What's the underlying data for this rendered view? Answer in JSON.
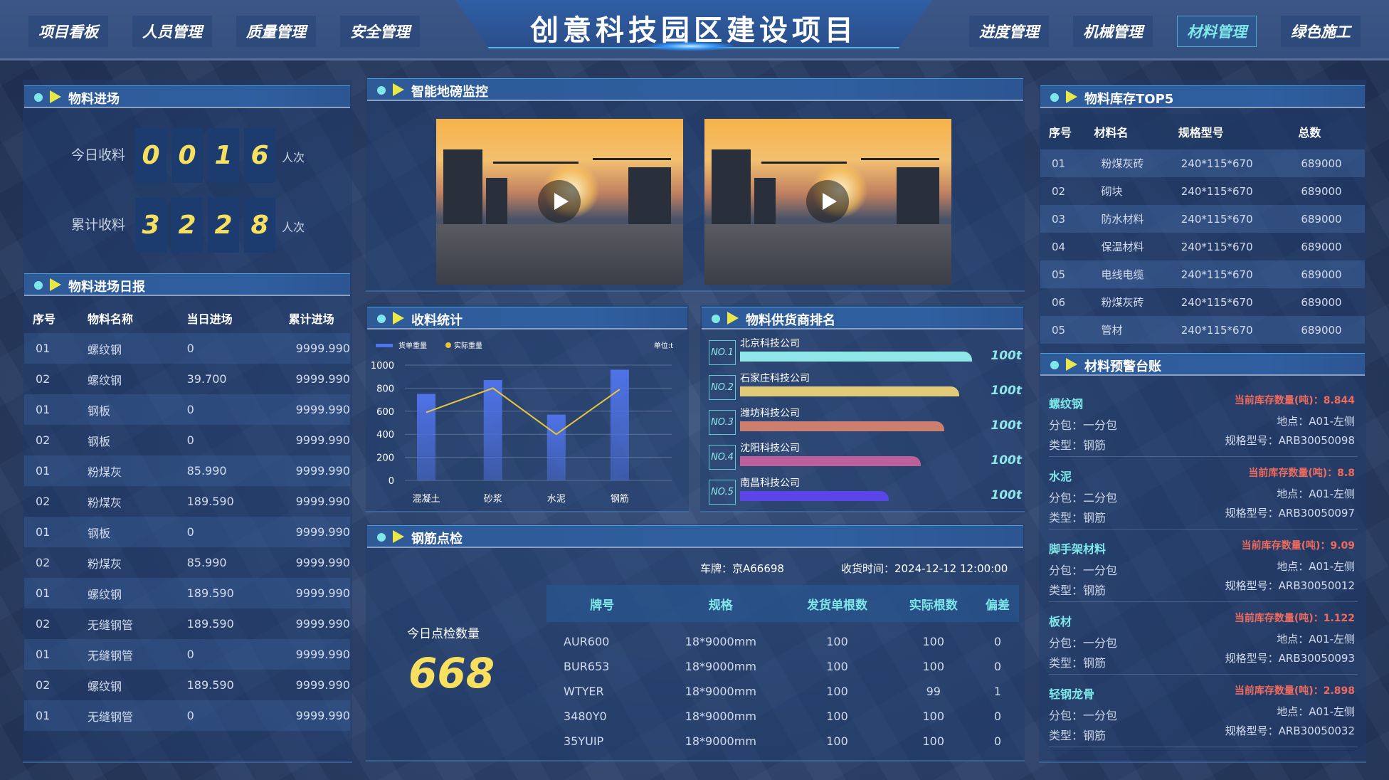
{
  "header": {
    "title": "创意科技园区建设项目",
    "nav_left": [
      "项目看板",
      "人员管理",
      "质量管理",
      "安全管理"
    ],
    "nav_right": [
      "进度管理",
      "机械管理",
      "材料管理",
      "绿色施工"
    ],
    "active": "材料管理"
  },
  "entry": {
    "title": "物料进场",
    "today_label": "今日收料",
    "today_digits": [
      "0",
      "0",
      "1",
      "6"
    ],
    "total_label": "累计收料",
    "total_digits": [
      "3",
      "2",
      "2",
      "8"
    ],
    "unit": "人次"
  },
  "daily": {
    "title": "物料进场日报",
    "columns": [
      "序号",
      "物料名称",
      "当日进场",
      "累计进场"
    ],
    "rows": [
      [
        "01",
        "螺纹钢",
        "0",
        "9999.990"
      ],
      [
        "02",
        "螺纹钢",
        "39.700",
        "9999.990"
      ],
      [
        "01",
        "钢板",
        "0",
        "9999.990"
      ],
      [
        "02",
        "钢板",
        "0",
        "9999.990"
      ],
      [
        "01",
        "粉煤灰",
        "85.990",
        "9999.990"
      ],
      [
        "02",
        "粉煤灰",
        "189.590",
        "9999.990"
      ],
      [
        "01",
        "钢板",
        "0",
        "9999.990"
      ],
      [
        "02",
        "粉煤灰",
        "85.990",
        "9999.990"
      ],
      [
        "01",
        "螺纹钢",
        "189.590",
        "9999.990"
      ],
      [
        "02",
        "无缝钢管",
        "189.590",
        "9999.990"
      ],
      [
        "01",
        "无缝钢管",
        "0",
        "9999.990"
      ],
      [
        "02",
        "螺纹钢",
        "189.590",
        "9999.990"
      ],
      [
        "01",
        "无缝钢管",
        "0",
        "9999.990"
      ]
    ]
  },
  "monitor": {
    "title": "智能地磅监控"
  },
  "stats": {
    "title": "收料统计"
  },
  "chart_data": {
    "type": "bar",
    "categories": [
      "混凝土",
      "砂浆",
      "水泥",
      "钢筋"
    ],
    "series": [
      {
        "name": "货单重量",
        "type": "bar",
        "values": [
          750,
          870,
          570,
          960
        ],
        "color": "#4f73e8"
      },
      {
        "name": "实际重量",
        "type": "line",
        "values": [
          590,
          800,
          400,
          790
        ],
        "color": "#e8c53a"
      }
    ],
    "unit": "单位:t",
    "yticks": [
      0,
      200,
      400,
      600,
      800,
      1000
    ],
    "ylim": [
      0,
      1000
    ],
    "grid": true,
    "legend": "top-left"
  },
  "suppliers": {
    "title": "物料供货商排名",
    "items": [
      {
        "rank": "NO.1",
        "name": "北京科技公司",
        "value": "100t",
        "fill": 1.0,
        "color": "#8ee6e6"
      },
      {
        "rank": "NO.2",
        "name": "石家庄科技公司",
        "value": "100t",
        "fill": 0.946,
        "color": "#e2cb78"
      },
      {
        "rank": "NO.3",
        "name": "潍坊科技公司",
        "value": "100t",
        "fill": 0.88,
        "color": "#cc7f6e"
      },
      {
        "rank": "NO.4",
        "name": "沈阳科技公司",
        "value": "100t",
        "fill": 0.78,
        "color": "#bb6099"
      },
      {
        "rank": "NO.5",
        "name": "南昌科技公司",
        "value": "100t",
        "fill": 0.64,
        "color": "#5a45e8"
      }
    ]
  },
  "inspect": {
    "title": "钢筋点检",
    "count_label": "今日点检数量",
    "count": "668",
    "plate": "车牌：京A66698",
    "time": "收货时间：2024-12-12 12:00:00",
    "columns": [
      "牌号",
      "规格",
      "发货单根数",
      "实际根数",
      "偏差"
    ],
    "rows": [
      [
        "AUR600",
        "18*9000mm",
        "100",
        "100",
        "0"
      ],
      [
        "BUR653",
        "18*9000mm",
        "100",
        "100",
        "0"
      ],
      [
        "WTYER",
        "18*9000mm",
        "100",
        "99",
        "1"
      ],
      [
        "3480Y0",
        "18*9000mm",
        "100",
        "100",
        "0"
      ],
      [
        "35YUIP",
        "18*9000mm",
        "100",
        "100",
        "0"
      ]
    ]
  },
  "top5": {
    "title": "物料库存TOP5",
    "columns": [
      "序号",
      "材料名",
      "规格型号",
      "总数"
    ],
    "rows": [
      [
        "01",
        "粉煤灰砖",
        "240*115*670",
        "689000"
      ],
      [
        "02",
        "砌块",
        "240*115*670",
        "689000"
      ],
      [
        "03",
        "防水材料",
        "240*115*670",
        "689000"
      ],
      [
        "04",
        "保温材料",
        "240*115*670",
        "689000"
      ],
      [
        "05",
        "电线电缆",
        "240*115*670",
        "689000"
      ],
      [
        "06",
        "粉煤灰砖",
        "240*115*670",
        "689000"
      ],
      [
        "05",
        "管材",
        "240*115*670",
        "689000"
      ]
    ]
  },
  "warning": {
    "title": "材料预警台账",
    "items": [
      {
        "name": "螺纹钢",
        "pkg": "分包：一分包",
        "type": "类型：钢筋",
        "qty": "当前库存数量(吨)：8.844",
        "loc": "地点：A01-左侧",
        "model": "规格型号：ARB30050098"
      },
      {
        "name": "水泥",
        "pkg": "分包：二分包",
        "type": "类型：钢筋",
        "qty": "当前库存数量(吨)：8.8",
        "loc": "地点：A01-左侧",
        "model": "规格型号：ARB30050097"
      },
      {
        "name": "脚手架材料",
        "pkg": "分包：一分包",
        "type": "类型：钢筋",
        "qty": "当前库存数量(吨)：9.09",
        "loc": "地点：A01-左侧",
        "model": "规格型号：ARB30050012"
      },
      {
        "name": "板材",
        "pkg": "分包：一分包",
        "type": "类型：钢筋",
        "qty": "当前库存数量(吨)：1.122",
        "loc": "地点：A01-左侧",
        "model": "规格型号：ARB30050093"
      },
      {
        "name": "轻钢龙骨",
        "pkg": "分包：一分包",
        "type": "类型：钢筋",
        "qty": "当前库存数量(吨)：2.898",
        "loc": "地点：A01-左侧",
        "model": "规格型号：ARB30050032"
      }
    ]
  }
}
